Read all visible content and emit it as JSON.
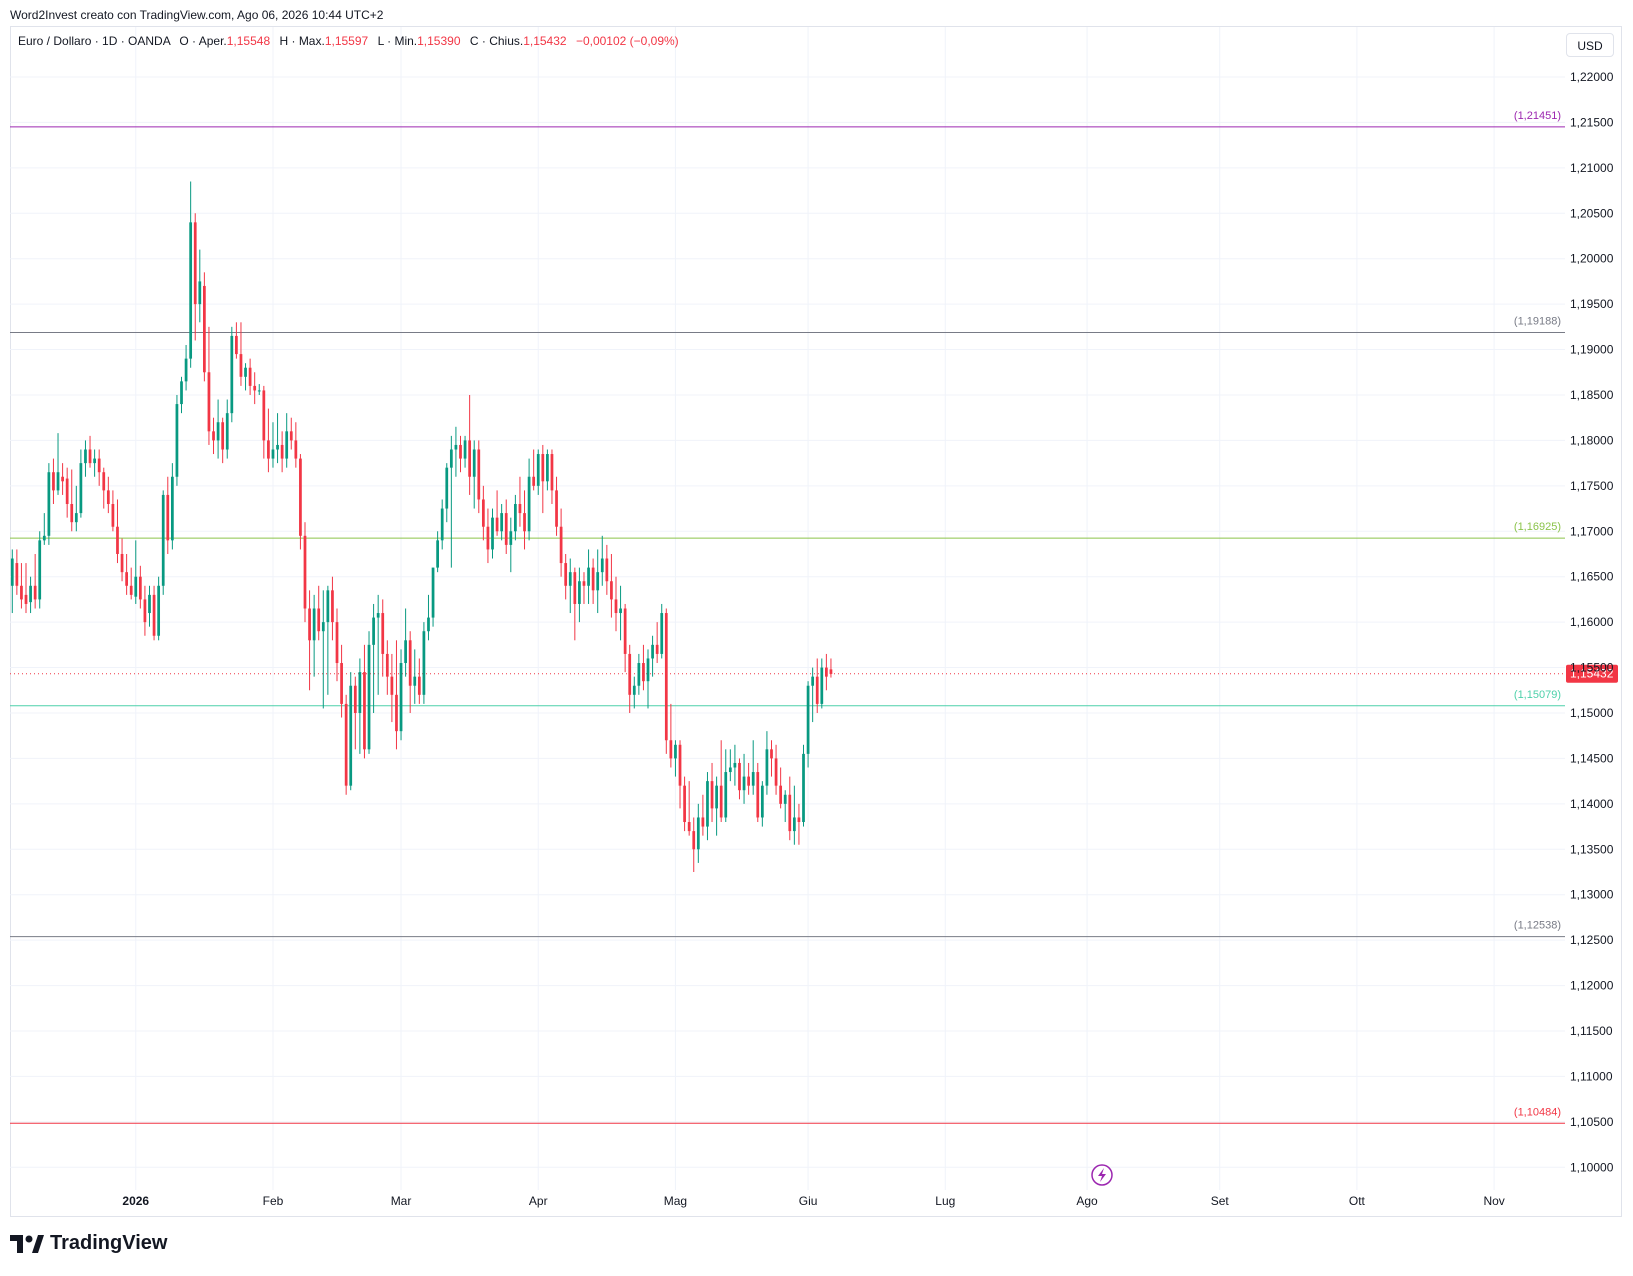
{
  "header": {
    "text": "Word2Invest creato con TradingView.com, Ago 06, 2026 10:44 UTC+2"
  },
  "legend": {
    "symbol": "Euro / Dollaro · 1D · OANDA",
    "open_label": "O · Aper.",
    "open": "1,15548",
    "high_label": "H · Max.",
    "high": "1,15597",
    "low_label": "L · Min.",
    "low": "1,15390",
    "close_label": "C · Chius.",
    "close": "1,15432",
    "change": "−0,00102 (−0,09%)"
  },
  "currency_button": "USD",
  "logo_text": "TradingView",
  "colors": {
    "up": "#089981",
    "down": "#f23645",
    "grid": "#f0f3fa"
  },
  "chart_data": {
    "type": "candlestick",
    "symbol": "EURUSD",
    "timeframe": "1D",
    "ylim": [
      1.0975,
      1.2255
    ],
    "y_ticks": [
      "1,22000",
      "1,21500",
      "1,21000",
      "1,20500",
      "1,20000",
      "1,19500",
      "1,19000",
      "1,18500",
      "1,18000",
      "1,17500",
      "1,17000",
      "1,16500",
      "1,16000",
      "1,15500",
      "1,15000",
      "1,14500",
      "1,14000",
      "1,13500",
      "1,13000",
      "1,12500",
      "1,12000",
      "1,11500",
      "1,11000",
      "1,10500",
      "1,10000"
    ],
    "y_tick_values": [
      1.22,
      1.215,
      1.21,
      1.205,
      1.2,
      1.195,
      1.19,
      1.185,
      1.18,
      1.175,
      1.17,
      1.165,
      1.16,
      1.155,
      1.15,
      1.145,
      1.14,
      1.135,
      1.13,
      1.125,
      1.12,
      1.115,
      1.11,
      1.105,
      1.1
    ],
    "x_ticks": [
      {
        "label": "2026",
        "index": 27
      },
      {
        "label": "Feb",
        "index": 57
      },
      {
        "label": "Mar",
        "index": 85
      },
      {
        "label": "Apr",
        "index": 115
      },
      {
        "label": "Mag",
        "index": 145
      },
      {
        "label": "Giu",
        "index": 174
      },
      {
        "label": "Lug",
        "index": 204
      },
      {
        "label": "Ago",
        "index": 235
      },
      {
        "label": "Set",
        "index": 264
      },
      {
        "label": "Ott",
        "index": 294
      },
      {
        "label": "Nov",
        "index": 324
      }
    ],
    "slot_count": 340,
    "current_price": {
      "value": 1.15432,
      "label": "1,15432"
    },
    "levels": [
      {
        "value": 1.21451,
        "label": "(1,21451)",
        "color": "#9c27b0"
      },
      {
        "value": 1.19188,
        "label": "(1,19188)",
        "color": "#787b86"
      },
      {
        "value": 1.16925,
        "label": "(1,16925)",
        "color": "#8bc34a"
      },
      {
        "value": 1.15079,
        "label": "(1,15079)",
        "color": "#4dd0aa"
      },
      {
        "value": 1.12538,
        "label": "(1,12538)",
        "color": "#787b86"
      },
      {
        "value": 1.10484,
        "label": "(1,10484)",
        "color": "#f23645"
      }
    ],
    "candles": [
      [
        1.164,
        1.168,
        1.161,
        1.167
      ],
      [
        1.1665,
        1.168,
        1.163,
        1.164
      ],
      [
        1.164,
        1.1665,
        1.1615,
        1.1625
      ],
      [
        1.163,
        1.1665,
        1.161,
        1.162
      ],
      [
        1.1622,
        1.165,
        1.161,
        1.164
      ],
      [
        1.164,
        1.1675,
        1.1615,
        1.1625
      ],
      [
        1.1625,
        1.17,
        1.1615,
        1.169
      ],
      [
        1.169,
        1.172,
        1.1685,
        1.1695
      ],
      [
        1.1695,
        1.1775,
        1.1685,
        1.1765
      ],
      [
        1.1765,
        1.178,
        1.173,
        1.1745
      ],
      [
        1.1745,
        1.1808,
        1.174,
        1.1765
      ],
      [
        1.176,
        1.1775,
        1.174,
        1.1755
      ],
      [
        1.1758,
        1.177,
        1.1715,
        1.173
      ],
      [
        1.173,
        1.1768,
        1.17,
        1.171
      ],
      [
        1.171,
        1.175,
        1.17,
        1.172
      ],
      [
        1.172,
        1.179,
        1.1715,
        1.1775
      ],
      [
        1.1775,
        1.18,
        1.176,
        1.179
      ],
      [
        1.179,
        1.1805,
        1.177,
        1.1775
      ],
      [
        1.1775,
        1.179,
        1.176,
        1.178
      ],
      [
        1.178,
        1.179,
        1.175,
        1.1765
      ],
      [
        1.1765,
        1.177,
        1.1725,
        1.1745
      ],
      [
        1.1745,
        1.176,
        1.172,
        1.173
      ],
      [
        1.173,
        1.1745,
        1.17,
        1.1705
      ],
      [
        1.1705,
        1.1735,
        1.1665,
        1.1675
      ],
      [
        1.1675,
        1.1692,
        1.1645,
        1.1655
      ],
      [
        1.1655,
        1.1675,
        1.163,
        1.164
      ],
      [
        1.164,
        1.166,
        1.1625,
        1.163
      ],
      [
        1.1628,
        1.169,
        1.162,
        1.165
      ],
      [
        1.165,
        1.1662,
        1.1615,
        1.1625
      ],
      [
        1.1625,
        1.164,
        1.1585,
        1.16
      ],
      [
        1.161,
        1.164,
        1.1595,
        1.163
      ],
      [
        1.163,
        1.164,
        1.158,
        1.1585
      ],
      [
        1.1585,
        1.165,
        1.158,
        1.164
      ],
      [
        1.164,
        1.1745,
        1.163,
        1.174
      ],
      [
        1.174,
        1.176,
        1.1675,
        1.169
      ],
      [
        1.169,
        1.1775,
        1.168,
        1.176
      ],
      [
        1.176,
        1.185,
        1.175,
        1.184
      ],
      [
        1.184,
        1.187,
        1.183,
        1.1865
      ],
      [
        1.1865,
        1.1905,
        1.1855,
        1.189
      ],
      [
        1.189,
        1.2085,
        1.188,
        1.204
      ],
      [
        1.204,
        1.205,
        1.191,
        1.195
      ],
      [
        1.195,
        1.201,
        1.193,
        1.1975
      ],
      [
        1.197,
        1.1985,
        1.1865,
        1.1875
      ],
      [
        1.1875,
        1.1925,
        1.1795,
        1.181
      ],
      [
        1.181,
        1.1825,
        1.1785,
        1.18
      ],
      [
        1.18,
        1.1845,
        1.178,
        1.182
      ],
      [
        1.182,
        1.1825,
        1.1775,
        1.179
      ],
      [
        1.179,
        1.1845,
        1.178,
        1.183
      ],
      [
        1.183,
        1.1925,
        1.182,
        1.1915
      ],
      [
        1.1915,
        1.193,
        1.189,
        1.1895
      ],
      [
        1.1895,
        1.193,
        1.186,
        1.187
      ],
      [
        1.187,
        1.1885,
        1.1855,
        1.188
      ],
      [
        1.188,
        1.189,
        1.185,
        1.186
      ],
      [
        1.186,
        1.1875,
        1.184,
        1.1855
      ],
      [
        1.1855,
        1.1862,
        1.185,
        1.1855
      ],
      [
        1.1855,
        1.186,
        1.178,
        1.18
      ],
      [
        1.18,
        1.1835,
        1.1765,
        1.178
      ],
      [
        1.178,
        1.182,
        1.177,
        1.179
      ],
      [
        1.179,
        1.183,
        1.1775,
        1.1795
      ],
      [
        1.1795,
        1.181,
        1.1765,
        1.178
      ],
      [
        1.178,
        1.183,
        1.177,
        1.181
      ],
      [
        1.181,
        1.1825,
        1.179,
        1.18
      ],
      [
        1.18,
        1.182,
        1.177,
        1.178
      ],
      [
        1.178,
        1.1785,
        1.168,
        1.1695
      ],
      [
        1.1695,
        1.171,
        1.16,
        1.1615
      ],
      [
        1.1615,
        1.1635,
        1.1525,
        1.158
      ],
      [
        1.158,
        1.163,
        1.154,
        1.1615
      ],
      [
        1.1615,
        1.164,
        1.158,
        1.159
      ],
      [
        1.159,
        1.1635,
        1.1505,
        1.16
      ],
      [
        1.16,
        1.164,
        1.152,
        1.1635
      ],
      [
        1.1635,
        1.165,
        1.158,
        1.16
      ],
      [
        1.16,
        1.1615,
        1.1535,
        1.1555
      ],
      [
        1.1555,
        1.1575,
        1.1495,
        1.151
      ],
      [
        1.151,
        1.152,
        1.141,
        1.142
      ],
      [
        1.142,
        1.1545,
        1.1415,
        1.153
      ],
      [
        1.153,
        1.154,
        1.146,
        1.15
      ],
      [
        1.15,
        1.156,
        1.1455,
        1.1545
      ],
      [
        1.1545,
        1.1575,
        1.145,
        1.146
      ],
      [
        1.146,
        1.159,
        1.1455,
        1.1575
      ],
      [
        1.1575,
        1.162,
        1.15,
        1.1605
      ],
      [
        1.1605,
        1.163,
        1.152,
        1.161
      ],
      [
        1.161,
        1.1625,
        1.154,
        1.1565
      ],
      [
        1.1565,
        1.158,
        1.152,
        1.154
      ],
      [
        1.154,
        1.1565,
        1.149,
        1.152
      ],
      [
        1.152,
        1.158,
        1.146,
        1.148
      ],
      [
        1.148,
        1.157,
        1.147,
        1.1555
      ],
      [
        1.1555,
        1.1615,
        1.154,
        1.158
      ],
      [
        1.158,
        1.159,
        1.15,
        1.153
      ],
      [
        1.153,
        1.157,
        1.151,
        1.154
      ],
      [
        1.154,
        1.156,
        1.151,
        1.152
      ],
      [
        1.152,
        1.16,
        1.151,
        1.159
      ],
      [
        1.159,
        1.163,
        1.158,
        1.1605
      ],
      [
        1.1605,
        1.166,
        1.1595,
        1.166
      ],
      [
        1.166,
        1.17,
        1.1655,
        1.169
      ],
      [
        1.169,
        1.1735,
        1.168,
        1.1725
      ],
      [
        1.1725,
        1.1775,
        1.171,
        1.177
      ],
      [
        1.177,
        1.1805,
        1.166,
        1.179
      ],
      [
        1.179,
        1.1815,
        1.176,
        1.1795
      ],
      [
        1.1795,
        1.1805,
        1.1765,
        1.178
      ],
      [
        1.178,
        1.1805,
        1.177,
        1.18
      ],
      [
        1.18,
        1.185,
        1.174,
        1.176
      ],
      [
        1.176,
        1.18,
        1.1725,
        1.179
      ],
      [
        1.179,
        1.18,
        1.172,
        1.1735
      ],
      [
        1.1735,
        1.175,
        1.169,
        1.1705
      ],
      [
        1.1705,
        1.1725,
        1.1665,
        1.168
      ],
      [
        1.168,
        1.1725,
        1.167,
        1.1715
      ],
      [
        1.1715,
        1.1745,
        1.1695,
        1.17
      ],
      [
        1.17,
        1.173,
        1.169,
        1.172
      ],
      [
        1.172,
        1.1735,
        1.1675,
        1.1685
      ],
      [
        1.1685,
        1.1715,
        1.1655,
        1.17
      ],
      [
        1.17,
        1.174,
        1.169,
        1.173
      ],
      [
        1.173,
        1.176,
        1.1705,
        1.172
      ],
      [
        1.172,
        1.1745,
        1.168,
        1.17
      ],
      [
        1.17,
        1.178,
        1.169,
        1.176
      ],
      [
        1.176,
        1.179,
        1.1745,
        1.175
      ],
      [
        1.175,
        1.179,
        1.174,
        1.1785
      ],
      [
        1.1785,
        1.1795,
        1.172,
        1.1755
      ],
      [
        1.1755,
        1.179,
        1.1745,
        1.1785
      ],
      [
        1.1785,
        1.179,
        1.173,
        1.1745
      ],
      [
        1.1745,
        1.176,
        1.1695,
        1.1705
      ],
      [
        1.1705,
        1.1725,
        1.165,
        1.1665
      ],
      [
        1.1665,
        1.1675,
        1.1625,
        1.164
      ],
      [
        1.164,
        1.167,
        1.161,
        1.1655
      ],
      [
        1.1655,
        1.166,
        1.158,
        1.162
      ],
      [
        1.162,
        1.166,
        1.16,
        1.1645
      ],
      [
        1.1645,
        1.1655,
        1.162,
        1.164
      ],
      [
        1.164,
        1.168,
        1.162,
        1.166
      ],
      [
        1.166,
        1.167,
        1.162,
        1.1635
      ],
      [
        1.1635,
        1.168,
        1.161,
        1.1655
      ],
      [
        1.1655,
        1.1695,
        1.164,
        1.167
      ],
      [
        1.167,
        1.1685,
        1.163,
        1.1645
      ],
      [
        1.1645,
        1.1675,
        1.1605,
        1.1625
      ],
      [
        1.1625,
        1.165,
        1.159,
        1.161
      ],
      [
        1.161,
        1.164,
        1.158,
        1.1615
      ],
      [
        1.1615,
        1.162,
        1.1545,
        1.1565
      ],
      [
        1.1565,
        1.1575,
        1.15,
        1.152
      ],
      [
        1.152,
        1.154,
        1.1505,
        1.153
      ],
      [
        1.153,
        1.1565,
        1.152,
        1.1555
      ],
      [
        1.1555,
        1.1575,
        1.1525,
        1.1535
      ],
      [
        1.1535,
        1.157,
        1.1505,
        1.156
      ],
      [
        1.156,
        1.1585,
        1.154,
        1.1575
      ],
      [
        1.1575,
        1.16,
        1.1555,
        1.1565
      ],
      [
        1.1565,
        1.162,
        1.156,
        1.161
      ],
      [
        1.161,
        1.1615,
        1.1455,
        1.147
      ],
      [
        1.147,
        1.151,
        1.144,
        1.145
      ],
      [
        1.145,
        1.147,
        1.143,
        1.1465
      ],
      [
        1.1465,
        1.147,
        1.1395,
        1.142
      ],
      [
        1.142,
        1.143,
        1.137,
        1.138
      ],
      [
        1.138,
        1.1425,
        1.1365,
        1.137
      ],
      [
        1.137,
        1.1385,
        1.1325,
        1.135
      ],
      [
        1.135,
        1.14,
        1.1335,
        1.1385
      ],
      [
        1.1385,
        1.141,
        1.1365,
        1.1375
      ],
      [
        1.1375,
        1.1435,
        1.136,
        1.1425
      ],
      [
        1.1425,
        1.1445,
        1.138,
        1.1395
      ],
      [
        1.1395,
        1.143,
        1.1365,
        1.142
      ],
      [
        1.142,
        1.147,
        1.138,
        1.1385
      ],
      [
        1.1385,
        1.146,
        1.138,
        1.1435
      ],
      [
        1.1435,
        1.146,
        1.1425,
        1.144
      ],
      [
        1.144,
        1.1465,
        1.142,
        1.1445
      ],
      [
        1.1445,
        1.145,
        1.1405,
        1.1415
      ],
      [
        1.1415,
        1.1455,
        1.14,
        1.143
      ],
      [
        1.143,
        1.1445,
        1.141,
        1.142
      ],
      [
        1.142,
        1.147,
        1.141,
        1.1435
      ],
      [
        1.1435,
        1.1445,
        1.138,
        1.1385
      ],
      [
        1.1385,
        1.1425,
        1.1375,
        1.142
      ],
      [
        1.142,
        1.148,
        1.141,
        1.146
      ],
      [
        1.146,
        1.147,
        1.143,
        1.145
      ],
      [
        1.145,
        1.1465,
        1.141,
        1.142
      ],
      [
        1.142,
        1.144,
        1.1395,
        1.14
      ],
      [
        1.14,
        1.1415,
        1.138,
        1.141
      ],
      [
        1.141,
        1.143,
        1.136,
        1.137
      ],
      [
        1.137,
        1.142,
        1.1355,
        1.1385
      ],
      [
        1.1385,
        1.14,
        1.1355,
        1.138
      ],
      [
        1.138,
        1.1465,
        1.1375,
        1.1455
      ],
      [
        1.1455,
        1.1535,
        1.144,
        1.153
      ],
      [
        1.153,
        1.155,
        1.149,
        1.154
      ],
      [
        1.154,
        1.156,
        1.15,
        1.151
      ],
      [
        1.151,
        1.156,
        1.1505,
        1.155
      ],
      [
        1.155,
        1.1565,
        1.1525,
        1.154
      ],
      [
        1.1548,
        1.156,
        1.1539,
        1.1543
      ]
    ],
    "candle_start_index": 0
  }
}
